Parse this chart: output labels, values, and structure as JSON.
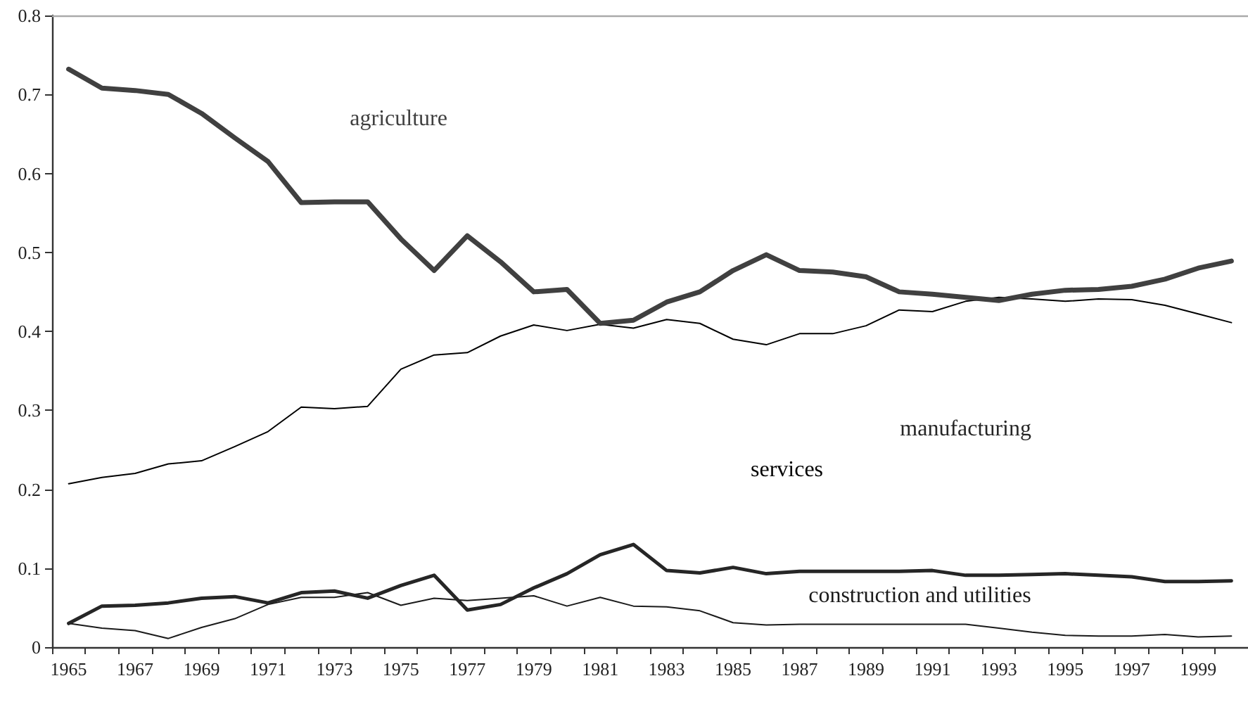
{
  "chart_data": {
    "type": "line",
    "categories": [
      "1965",
      null,
      "1967",
      null,
      "1969",
      null,
      "1971",
      null,
      "1973",
      null,
      "1975",
      null,
      "1977",
      null,
      "1979",
      null,
      "1981",
      null,
      "1983",
      null,
      "1985",
      null,
      "1987",
      null,
      "1989",
      null,
      "1991",
      null,
      "1993",
      null,
      "1995",
      null,
      "1997",
      null,
      "1999",
      null
    ],
    "ylim": [
      0,
      0.8
    ],
    "yticks": [
      0,
      0.1,
      0.2,
      0.3,
      0.4,
      0.5,
      0.6,
      0.7,
      0.8
    ],
    "grid": false,
    "legend": false,
    "marker": "none",
    "line_style": "solid",
    "series": [
      {
        "name": "agriculture",
        "color": "#404040",
        "values": [
          0.732,
          0.708,
          0.705,
          0.7,
          0.676,
          0.645,
          0.615,
          0.563,
          0.564,
          0.564,
          0.517,
          0.477,
          0.521,
          0.488,
          0.45,
          0.453,
          0.41,
          0.414,
          0.437,
          0.45,
          0.477,
          0.497,
          0.477,
          0.475,
          0.469,
          0.45,
          0.447,
          0.443,
          0.439,
          0.447,
          0.452,
          0.453,
          0.457,
          0.466,
          0.48,
          0.489
        ]
      },
      {
        "name": "services",
        "color": "#000000",
        "values": [
          0.207,
          0.215,
          0.22,
          0.232,
          0.236,
          0.254,
          0.273,
          0.304,
          0.302,
          0.305,
          0.352,
          0.37,
          0.373,
          0.394,
          0.408,
          0.401,
          0.409,
          0.404,
          0.415,
          0.41,
          0.39,
          0.383,
          0.397,
          0.397,
          0.407,
          0.427,
          0.425,
          0.438,
          0.443,
          0.441,
          0.438,
          0.441,
          0.44,
          0.433,
          0.422,
          0.411
        ]
      },
      {
        "name": "manufacturing",
        "color": "#262626",
        "values": [
          0.03,
          0.052,
          0.053,
          0.056,
          0.062,
          0.064,
          0.056,
          0.069,
          0.071,
          0.062,
          0.078,
          0.091,
          0.047,
          0.054,
          0.075,
          0.093,
          0.117,
          0.13,
          0.097,
          0.094,
          0.101,
          0.093,
          0.096,
          0.096,
          0.096,
          0.096,
          0.097,
          0.091,
          0.091,
          0.092,
          0.093,
          0.091,
          0.089,
          0.083,
          0.083,
          0.084
        ]
      },
      {
        "name": "construction and utilities",
        "color": "#1a1a1a",
        "values": [
          0.03,
          0.024,
          0.021,
          0.011,
          0.025,
          0.036,
          0.054,
          0.063,
          0.063,
          0.069,
          0.053,
          0.062,
          0.059,
          0.062,
          0.065,
          0.052,
          0.063,
          0.052,
          0.051,
          0.046,
          0.031,
          0.028,
          0.029,
          0.029,
          0.029,
          0.029,
          0.029,
          0.029,
          0.024,
          0.019,
          0.015,
          0.014,
          0.014,
          0.016,
          0.013,
          0.014
        ]
      }
    ]
  }
}
